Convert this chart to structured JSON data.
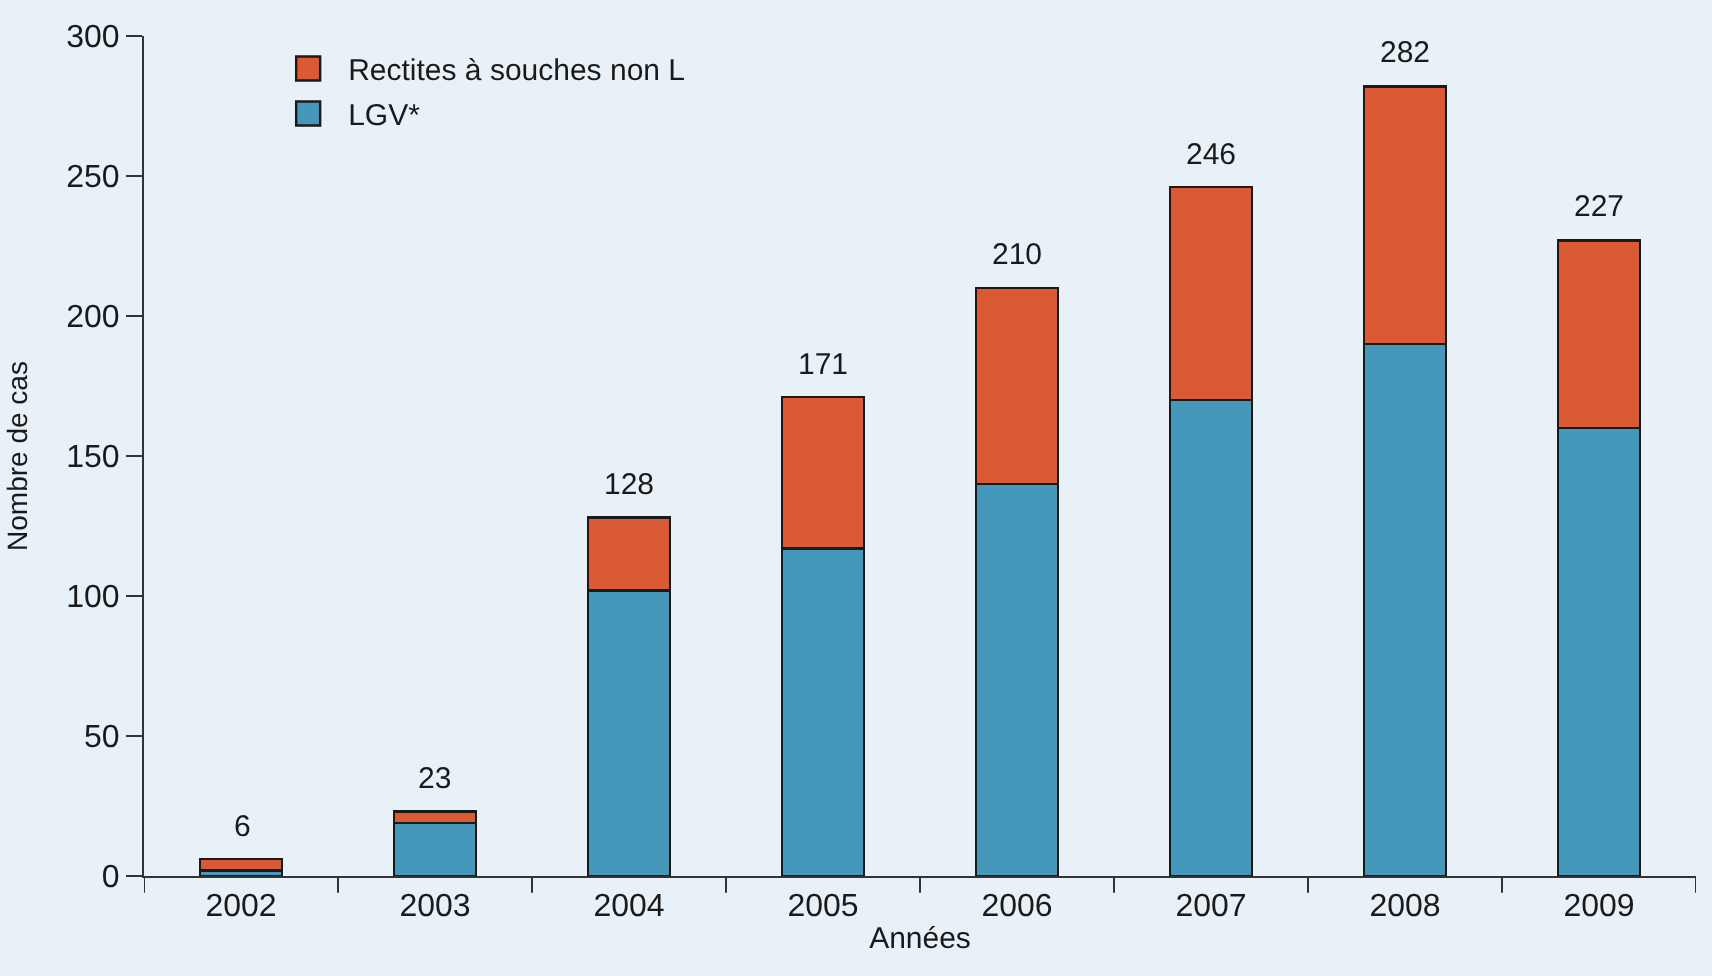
{
  "chart_data": {
    "type": "bar",
    "stacked": true,
    "xlabel": "Années",
    "ylabel": "Nombre de cas",
    "categories": [
      "2002",
      "2003",
      "2004",
      "2005",
      "2006",
      "2007",
      "2008",
      "2009"
    ],
    "series": [
      {
        "name": "LGV*",
        "color": "#4598b9",
        "values": [
          2,
          19,
          102,
          117,
          140,
          170,
          190,
          160
        ]
      },
      {
        "name": "Rectites à souches non L",
        "color": "#d95a35",
        "values": [
          4,
          4,
          26,
          54,
          70,
          76,
          92,
          67
        ]
      }
    ],
    "totals": [
      "6",
      "23",
      "128",
      "171",
      "210",
      "246",
      "282",
      "227"
    ],
    "ylim": [
      0,
      300
    ],
    "yticks": [
      0,
      50,
      100,
      150,
      200,
      250,
      300
    ],
    "grid": false,
    "legend": "top left"
  }
}
